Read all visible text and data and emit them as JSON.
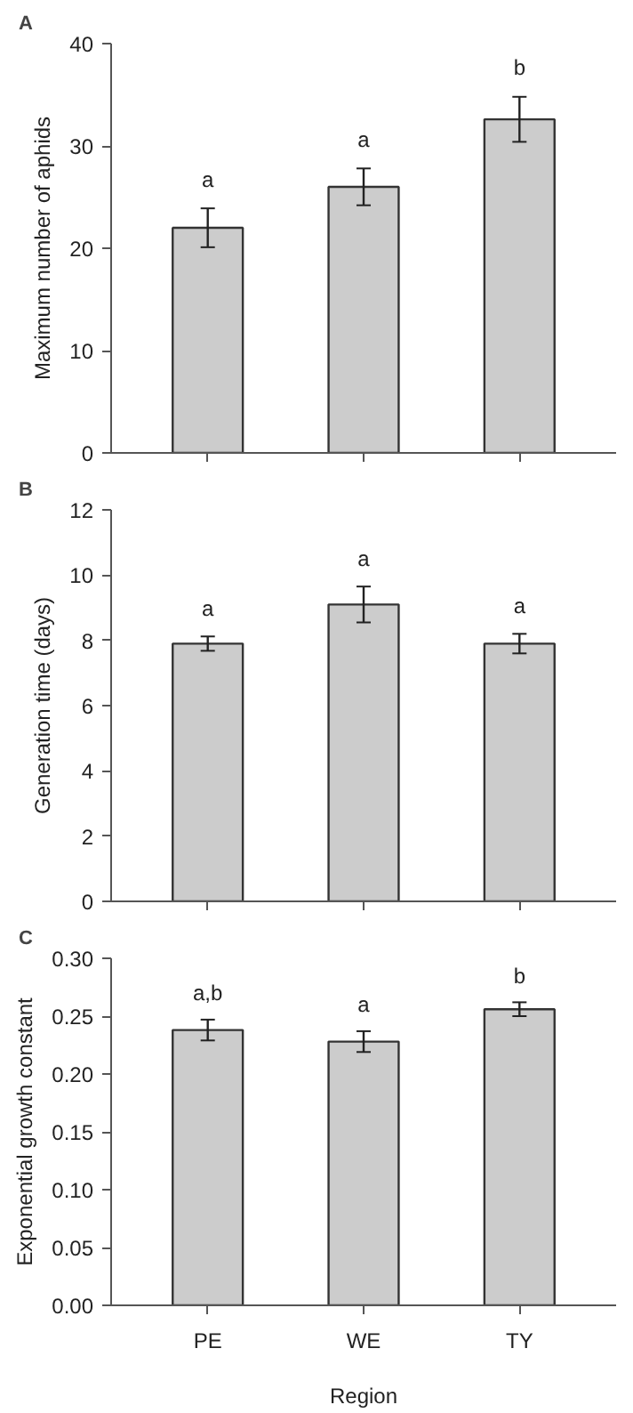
{
  "chart_data": [
    {
      "type": "bar",
      "title": "A",
      "categories": [
        null,
        null,
        null
      ],
      "values": [
        22,
        26,
        32.6
      ],
      "errors": [
        1.9,
        1.8,
        2.2
      ],
      "color": "#cccccc",
      "ylabel": "Maximum number of aphids",
      "ylim": [
        0,
        40
      ],
      "yticks": [
        0,
        10,
        20,
        30,
        40
      ],
      "tick_labels": "y",
      "grid": false,
      "value_labels": [
        "a",
        "a",
        "b"
      ]
    },
    {
      "type": "bar",
      "title": "B",
      "categories": [
        null,
        null,
        null
      ],
      "values": [
        7.9,
        9.1,
        7.9
      ],
      "errors": [
        0.22,
        0.55,
        0.3
      ],
      "color": "#cccccc",
      "ylabel": "Generation time (days)",
      "ylim": [
        0,
        12
      ],
      "yticks": [
        0,
        2,
        4,
        6,
        8,
        10,
        12
      ],
      "tick_labels": "y",
      "grid": false,
      "value_labels": [
        "a",
        "a",
        "a"
      ]
    },
    {
      "type": "bar",
      "title": "C",
      "categories": [
        "PE",
        "WE",
        "TY"
      ],
      "values": [
        0.238,
        0.228,
        0.256
      ],
      "errors": [
        0.009,
        0.009,
        0.006
      ],
      "color": "#cccccc",
      "xlabel": "Region",
      "ylabel": "Exponential growth constant",
      "ylim": [
        0,
        0.3
      ],
      "yticks": [
        {
          "value": 0,
          "label": "0.00"
        },
        0.05,
        {
          "value": 0.1,
          "label": "0.10"
        },
        0.15,
        {
          "value": 0.2,
          "label": "0.20"
        },
        0.25,
        {
          "value": 0.3,
          "label": "0.30"
        }
      ],
      "grid": false,
      "value_labels": [
        "a,b",
        "a",
        "b"
      ]
    }
  ]
}
